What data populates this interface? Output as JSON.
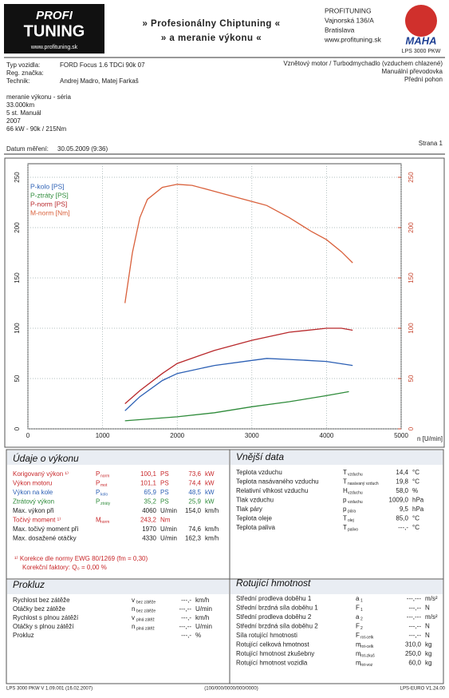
{
  "header": {
    "logo_top": "PROFI",
    "logo_bottom": "TUNING",
    "logo_url": "www.profituning.sk",
    "slogan1": "» Profesionálny Chiptuning «",
    "slogan2": "» a meranie výkonu «",
    "address": [
      "PROFITUNING",
      "Vajnorská 136/A",
      "Bratislava",
      "www.profituning.sk"
    ],
    "brand": "MAHA",
    "device": "LPS 3000 PKW"
  },
  "vehicle": {
    "rows": [
      [
        "Typ vozidla:",
        "FORD Focus 1.6 TDCi 90k 07"
      ],
      [
        "Reg. značka:"
      ],
      [
        "Technik:",
        "Andrej Madro, Matej Farkaš"
      ]
    ],
    "engine": [
      "Vznětový motor / Turbodmychadlo (vzduchem chlazené)",
      "Manuální převodovka",
      "Přední pohon"
    ],
    "notes": [
      "meranie výkonu - séria",
      "33.000km",
      "5 st. Manuál",
      "2007",
      "66 kW - 90k / 215Nm"
    ],
    "date_label": "Datum měření:",
    "date": "30.05.2009 (9:36)",
    "page": "Strana 1"
  },
  "chart_data": {
    "type": "line",
    "xlabel": "n [U/min]",
    "xlim": [
      0,
      5000
    ],
    "xticks": [
      0,
      1000,
      2000,
      3000,
      4000,
      5000
    ],
    "ylim": [
      0,
      250
    ],
    "yticks": [
      0,
      50,
      100,
      150,
      200,
      250
    ],
    "y2lim": [
      0,
      250
    ],
    "y2ticks": [
      0,
      50,
      100,
      150,
      200,
      250
    ],
    "y2color": "#c8452e",
    "grid": true,
    "legend": "top-left",
    "series": [
      {
        "name": "P-kolo [PS]",
        "color": "#2b5fb4",
        "x": [
          1300,
          1500,
          1800,
          2000,
          2500,
          3000,
          3200,
          3500,
          4000,
          4350
        ],
        "values": [
          18,
          32,
          48,
          55,
          63,
          68,
          70,
          69,
          67,
          63
        ]
      },
      {
        "name": "P-ztráty [PS]",
        "color": "#2e8b3a",
        "x": [
          1300,
          2000,
          2500,
          3000,
          3500,
          4000,
          4300
        ],
        "values": [
          8,
          12,
          16,
          22,
          27,
          33,
          37
        ]
      },
      {
        "name": "P-norm [PS]",
        "color": "#b8282b",
        "x": [
          1300,
          1500,
          1800,
          2000,
          2500,
          3000,
          3500,
          4000,
          4200,
          4350
        ],
        "values": [
          25,
          38,
          55,
          65,
          78,
          88,
          96,
          100,
          100,
          98
        ]
      },
      {
        "name": "M-norm [Nm]",
        "color": "#d9603b",
        "axis": "y2",
        "x": [
          1300,
          1400,
          1500,
          1600,
          1800,
          2000,
          2200,
          2500,
          2800,
          3000,
          3200,
          3500,
          3800,
          4000,
          4200,
          4350
        ],
        "values": [
          125,
          175,
          210,
          228,
          240,
          243,
          242,
          236,
          230,
          226,
          222,
          210,
          196,
          188,
          176,
          165
        ]
      }
    ]
  },
  "performance": {
    "title": "Údaje o výkonu",
    "rows": [
      {
        "label": "Korigovaný výkon ¹⁾",
        "color": "#c8282b",
        "sym": "P",
        "sub": "norm",
        "v1": "100,1",
        "u1": "PS",
        "v2": "73,6",
        "u2": "kW"
      },
      {
        "label": "Výkon motoru",
        "color": "#c8282b",
        "sym": "P",
        "sub": "mot",
        "v1": "101,1",
        "u1": "PS",
        "v2": "74,4",
        "u2": "kW"
      },
      {
        "label": "Výkon na kole",
        "color": "#2b5fb4",
        "sym": "P",
        "sub": "kolo",
        "v1": "65,9",
        "u1": "PS",
        "v2": "48,5",
        "u2": "kW"
      },
      {
        "label": "Ztrátový výkon",
        "color": "#2e8b3a",
        "sym": "P",
        "sub": "ztráty",
        "v1": "35,2",
        "u1": "PS",
        "v2": "25,9",
        "u2": "kW"
      },
      {
        "label": "Max. výkon při",
        "v1": "4060",
        "u1": "U/min",
        "v2": "154,0",
        "u2": "km/h"
      },
      {
        "label": "Točivý moment ¹⁾",
        "color": "#c8282b",
        "sym": "M",
        "sub": "norm",
        "v1": "243,2",
        "u1": "Nm"
      },
      {
        "label": "Max. točivý moment při",
        "v1": "1970",
        "u1": "U/min",
        "v2": "74,6",
        "u2": "km/h"
      },
      {
        "label": "Max. dosažené otáčky",
        "v1": "4330",
        "u1": "U/min",
        "v2": "162,3",
        "u2": "km/h"
      }
    ],
    "notes": [
      "¹⁾ Korekce dle normy EWG 80/1269 (fm = 0,30)",
      "Korekční faktory: Q₀ = 0,00 %"
    ]
  },
  "ambient": {
    "title": "Vnější data",
    "rows": [
      {
        "label": "Teplota vzduchu",
        "sym": "T",
        "sub": "vzduchu",
        "v1": "14,4",
        "u1": "°C"
      },
      {
        "label": "Teplota nasávaného vzduchu",
        "sym": "T",
        "sub": "nasávaný vzduch",
        "v1": "19,8",
        "u1": "°C"
      },
      {
        "label": "Relativní vlhkost vzduchu",
        "sym": "H",
        "sub": "vzduchu",
        "v1": "58,0",
        "u1": "%"
      },
      {
        "label": "Tlak vzduchu",
        "sym": "p",
        "sub": "vzduchu",
        "v1": "1009,0",
        "u1": "hPa"
      },
      {
        "label": "Tlak páry",
        "sym": "p",
        "sub": "pára",
        "v1": "9,5",
        "u1": "hPa"
      },
      {
        "label": "Teplota oleje",
        "sym": "T",
        "sub": "olej",
        "v1": "85,0",
        "u1": "°C"
      },
      {
        "label": "Teplota paliva",
        "sym": "T",
        "sub": "palivo",
        "v1": "---,-",
        "u1": "°C"
      }
    ]
  },
  "slip": {
    "title": "Prokluz",
    "rows": [
      {
        "label": "Rychlost bez zátěže",
        "sym": "v",
        "sub": "bez zátěže",
        "v1": "---,-",
        "u1": "km/h"
      },
      {
        "label": "Otáčky bez zátěže",
        "sym": "n",
        "sub": "bez zátěže",
        "v1": "---,--",
        "u1": "U/min"
      },
      {
        "label": "Rychlost s plnou zátěží",
        "sym": "v",
        "sub": "plná zátěž",
        "v1": "---,-",
        "u1": "km/h"
      },
      {
        "label": "Otáčky s plnou zátěží",
        "sym": "n",
        "sub": "plná zátěž",
        "v1": "---,--",
        "u1": "U/min"
      },
      {
        "label": "Prokluz",
        "v1": "---,-",
        "u1": "%"
      }
    ]
  },
  "rotating": {
    "title": "Rotující hmotnost",
    "rows": [
      {
        "label": "Střední prodleva doběhu 1",
        "sym": "a",
        "sub": "1",
        "v1": "---,---",
        "u1": "m/s²"
      },
      {
        "label": "Střední brzdná síla doběhu 1",
        "sym": "F",
        "sub": "1",
        "v1": "---,--",
        "u1": "N"
      },
      {
        "label": "Střední prodleva doběhu 2",
        "sym": "a",
        "sub": "2",
        "v1": "---,---",
        "u1": "m/s²"
      },
      {
        "label": "Střední brzdná síla doběhu 2",
        "sym": "F",
        "sub": "2",
        "v1": "---,--",
        "u1": "N"
      },
      {
        "label": "Síla rotující hmotnosti",
        "sym": "F",
        "sub": "rot-celk",
        "v1": "---,--",
        "u1": "N"
      },
      {
        "label": "Rotující celková hmotnost",
        "sym": "m",
        "sub": "rot-celk",
        "v1": "310,0",
        "u1": "kg"
      },
      {
        "label": "Rotující hmotnost zkušebny",
        "sym": "m",
        "sub": "rot-zkuš",
        "v1": "250,0",
        "u1": "kg"
      },
      {
        "label": "Rotující hmotnost vozidla",
        "sym": "m",
        "sub": "rot-voz",
        "v1": "60,0",
        "u1": "kg"
      }
    ]
  },
  "footer": [
    "LPS 3000 PKW V 1.09.001 (16.02.2007)",
    "(100/000/0000/000/0000)",
    "LPS-EURO V1.24.00"
  ]
}
